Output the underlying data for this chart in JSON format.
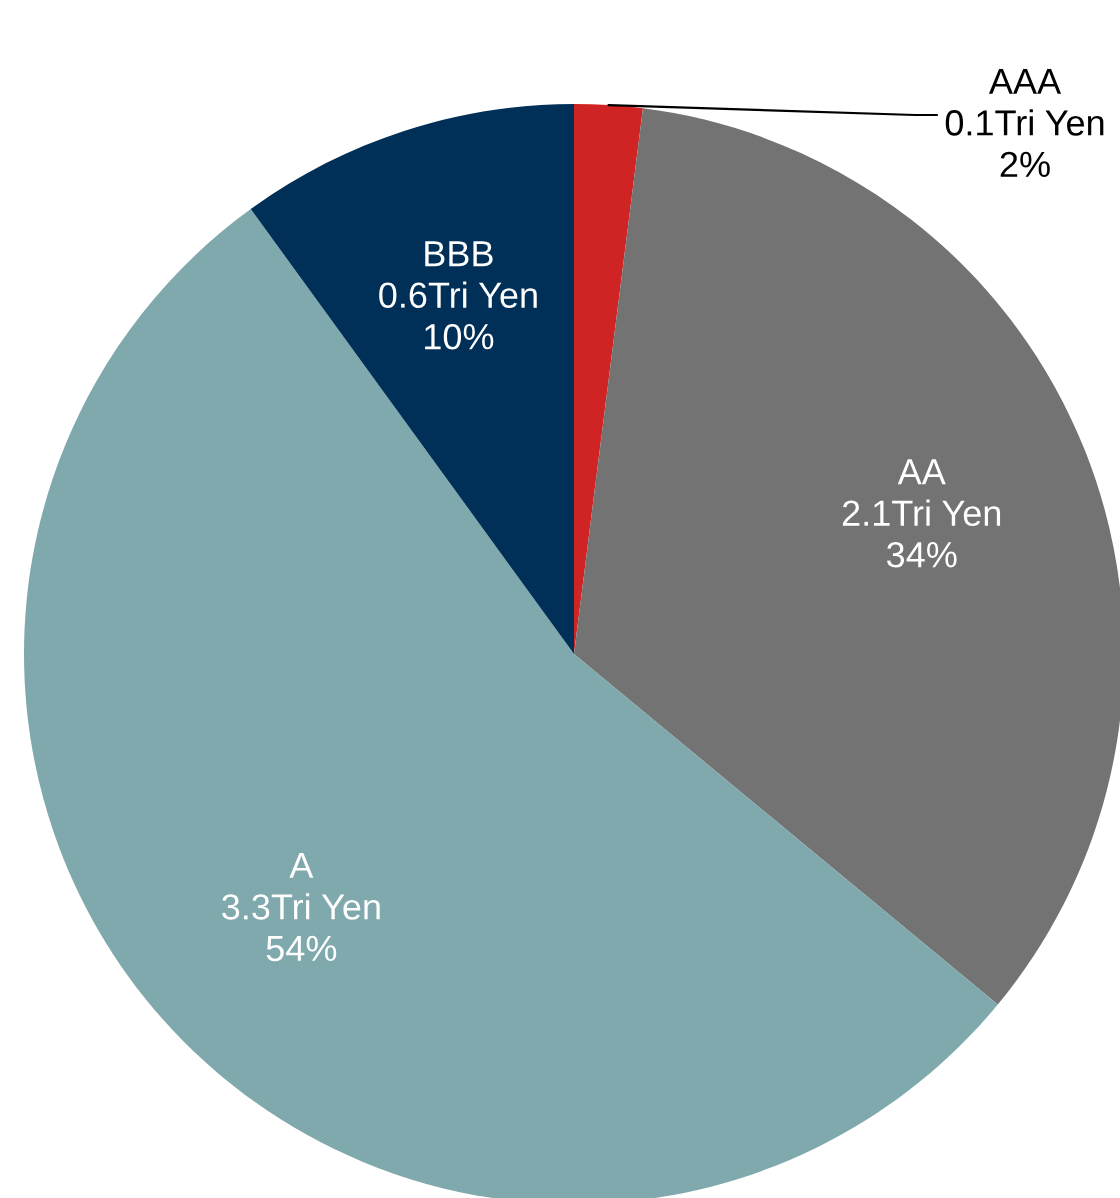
{
  "chart_data": {
    "type": "pie",
    "categories": [
      "AAA",
      "AA",
      "A",
      "BBB"
    ],
    "values": [
      2,
      34,
      54,
      10
    ],
    "value_labels": [
      "0.1Tri Yen\n2%",
      "2.1Tri Yen\n34%",
      "3.3Tri Yen\n54%",
      "0.6Tri Yen\n10%"
    ],
    "colors": [
      "#d02424",
      "#737373",
      "#80a9ad",
      "#003057"
    ],
    "legend": false
  }
}
